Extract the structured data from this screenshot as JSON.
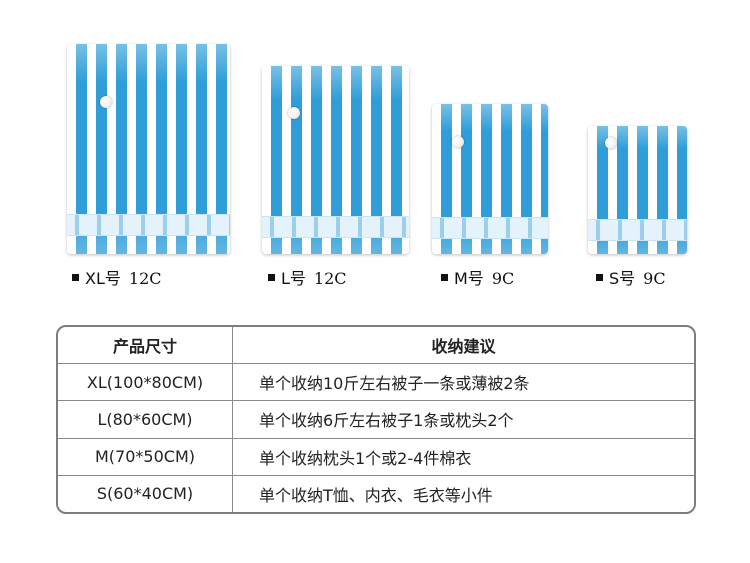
{
  "bags": [
    {
      "size": "XL号",
      "qty": "12C"
    },
    {
      "size": "L号",
      "qty": "12C"
    },
    {
      "size": "M号",
      "qty": "9C"
    },
    {
      "size": "S号",
      "qty": "9C"
    }
  ],
  "table": {
    "headers": [
      "产品尺寸",
      "收纳建议"
    ],
    "rows": [
      [
        "XL(100*80CM)",
        "单个收纳10斤左右被子一条或薄被2条"
      ],
      [
        "L(80*60CM)",
        "单个收纳6斤左右被子1条或枕头2个"
      ],
      [
        "M(70*50CM)",
        "单个收纳枕头1个或2-4件棉衣"
      ],
      [
        "S(60*40CM)",
        "单个收纳T恤、内衣、毛衣等小件"
      ]
    ]
  },
  "colors": {
    "stripe_blue": "#2f9ed8",
    "border_gray": "#7d7d7d"
  }
}
